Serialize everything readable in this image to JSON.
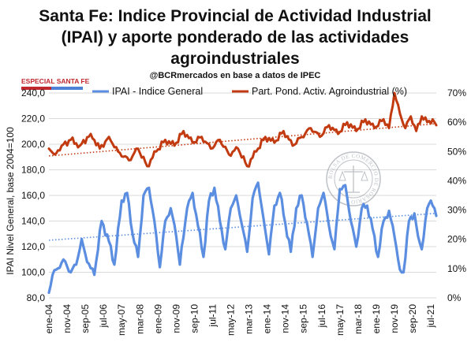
{
  "title_lines": [
    "Santa Fe: Indice Provincial de Actividad Industrial",
    "(IPAI) y aporte ponderado de las actividades",
    "agroindustriales"
  ],
  "source": "@BCRmercados en base a datos de IPEC",
  "badge": "ESPECIAL SANTA FE",
  "seal_text": "BOLSA DE COMERCIO DE ROSARIO",
  "colors": {
    "ipai": "#5b8ee0",
    "agro": "#c23a10",
    "badge_red": "#c0282e",
    "badge_blue": "#4f82d6"
  },
  "chart_data": {
    "type": "line",
    "ylabel": "IPAI Nivel General, base 2004=100",
    "y_left": {
      "min": 80,
      "max": 240,
      "ticks": [
        "80,0",
        "100,0",
        "120,0",
        "140,0",
        "160,0",
        "180,0",
        "200,0",
        "220,0",
        "240,0"
      ]
    },
    "y_right": {
      "min": 0,
      "max": 70,
      "ticks": [
        "0%",
        "10%",
        "20%",
        "30%",
        "40%",
        "50%",
        "60%",
        "70%"
      ]
    },
    "x_ticks": [
      "ene-04",
      "nov-04",
      "sep-05",
      "jul-06",
      "may-07",
      "mar-08",
      "ene-09",
      "nov-09",
      "sep-10",
      "jul-11",
      "may-12",
      "mar-13",
      "ene-14",
      "nov-14",
      "sep-15",
      "jul-16",
      "may-17",
      "mar-18",
      "ene-19",
      "nov-19",
      "sep-20",
      "jul-21"
    ],
    "x_start": "2004-01",
    "x_end": "2021-10",
    "grid": "horizontal",
    "legend": "top",
    "series": [
      {
        "name": "IPAI - Indice General",
        "axis": "left",
        "trend": [
          125,
          146
        ],
        "anchors": [
          [
            "2004-01",
            84
          ],
          [
            "2004-03",
            98
          ],
          [
            "2004-06",
            103
          ],
          [
            "2004-09",
            110
          ],
          [
            "2005-01",
            100
          ],
          [
            "2005-04",
            106
          ],
          [
            "2005-07",
            126
          ],
          [
            "2005-10",
            108
          ],
          [
            "2006-02",
            98
          ],
          [
            "2006-06",
            140
          ],
          [
            "2006-10",
            124
          ],
          [
            "2007-01",
            106
          ],
          [
            "2007-05",
            156
          ],
          [
            "2007-08",
            162
          ],
          [
            "2007-11",
            130
          ],
          [
            "2008-02",
            112
          ],
          [
            "2008-05",
            160
          ],
          [
            "2008-08",
            166
          ],
          [
            "2008-11",
            140
          ],
          [
            "2009-02",
            104
          ],
          [
            "2009-05",
            140
          ],
          [
            "2009-08",
            150
          ],
          [
            "2009-11",
            128
          ],
          [
            "2010-01",
            106
          ],
          [
            "2010-05",
            150
          ],
          [
            "2010-08",
            162
          ],
          [
            "2010-11",
            136
          ],
          [
            "2011-02",
            112
          ],
          [
            "2011-05",
            156
          ],
          [
            "2011-08",
            166
          ],
          [
            "2011-11",
            140
          ],
          [
            "2012-02",
            118
          ],
          [
            "2012-05",
            150
          ],
          [
            "2012-08",
            160
          ],
          [
            "2012-11",
            138
          ],
          [
            "2013-02",
            116
          ],
          [
            "2013-05",
            158
          ],
          [
            "2013-08",
            170
          ],
          [
            "2013-11",
            142
          ],
          [
            "2014-02",
            114
          ],
          [
            "2014-05",
            152
          ],
          [
            "2014-08",
            162
          ],
          [
            "2014-11",
            138
          ],
          [
            "2015-02",
            116
          ],
          [
            "2015-05",
            150
          ],
          [
            "2015-08",
            160
          ],
          [
            "2015-11",
            138
          ],
          [
            "2016-02",
            112
          ],
          [
            "2016-05",
            150
          ],
          [
            "2016-08",
            162
          ],
          [
            "2016-11",
            136
          ],
          [
            "2017-02",
            118
          ],
          [
            "2017-05",
            165
          ],
          [
            "2017-08",
            168
          ],
          [
            "2017-11",
            140
          ],
          [
            "2018-02",
            120
          ],
          [
            "2018-05",
            150
          ],
          [
            "2018-08",
            152
          ],
          [
            "2018-11",
            134
          ],
          [
            "2019-02",
            112
          ],
          [
            "2019-05",
            140
          ],
          [
            "2019-08",
            148
          ],
          [
            "2019-11",
            128
          ],
          [
            "2020-02",
            102
          ],
          [
            "2020-04",
            100
          ],
          [
            "2020-07",
            140
          ],
          [
            "2020-10",
            146
          ],
          [
            "2020-12",
            128
          ],
          [
            "2021-02",
            118
          ],
          [
            "2021-05",
            150
          ],
          [
            "2021-07",
            156
          ],
          [
            "2021-09",
            150
          ],
          [
            "2021-10",
            144
          ]
        ]
      },
      {
        "name": "Part. Pond. Activ. Agroindustrial (%)",
        "axis": "right",
        "trend": [
          48.5,
          59.5
        ],
        "anchors": [
          [
            "2004-01",
            51
          ],
          [
            "2004-04",
            49
          ],
          [
            "2004-08",
            52
          ],
          [
            "2005-01",
            54
          ],
          [
            "2005-06",
            52
          ],
          [
            "2005-12",
            56
          ],
          [
            "2006-05",
            51
          ],
          [
            "2006-10",
            55
          ],
          [
            "2007-03",
            50
          ],
          [
            "2007-09",
            47
          ],
          [
            "2008-02",
            51
          ],
          [
            "2008-07",
            45
          ],
          [
            "2008-12",
            50
          ],
          [
            "2009-05",
            54
          ],
          [
            "2009-10",
            52
          ],
          [
            "2010-03",
            57
          ],
          [
            "2010-08",
            53
          ],
          [
            "2011-01",
            55
          ],
          [
            "2011-06",
            51
          ],
          [
            "2011-11",
            54
          ],
          [
            "2012-04",
            49
          ],
          [
            "2012-09",
            51
          ],
          [
            "2013-02",
            45
          ],
          [
            "2013-07",
            50
          ],
          [
            "2013-12",
            55
          ],
          [
            "2014-05",
            53
          ],
          [
            "2014-10",
            57
          ],
          [
            "2015-03",
            52
          ],
          [
            "2015-08",
            55
          ],
          [
            "2016-01",
            58
          ],
          [
            "2016-06",
            55
          ],
          [
            "2016-11",
            59
          ],
          [
            "2017-04",
            56
          ],
          [
            "2017-09",
            60
          ],
          [
            "2018-02",
            57
          ],
          [
            "2018-07",
            61
          ],
          [
            "2018-12",
            58
          ],
          [
            "2019-05",
            61
          ],
          [
            "2019-08",
            58
          ],
          [
            "2019-11",
            70
          ],
          [
            "2020-02",
            63
          ],
          [
            "2020-05",
            58
          ],
          [
            "2020-08",
            62
          ],
          [
            "2020-11",
            57
          ],
          [
            "2021-02",
            62
          ],
          [
            "2021-05",
            60
          ],
          [
            "2021-08",
            61
          ],
          [
            "2021-10",
            59
          ]
        ]
      }
    ]
  }
}
